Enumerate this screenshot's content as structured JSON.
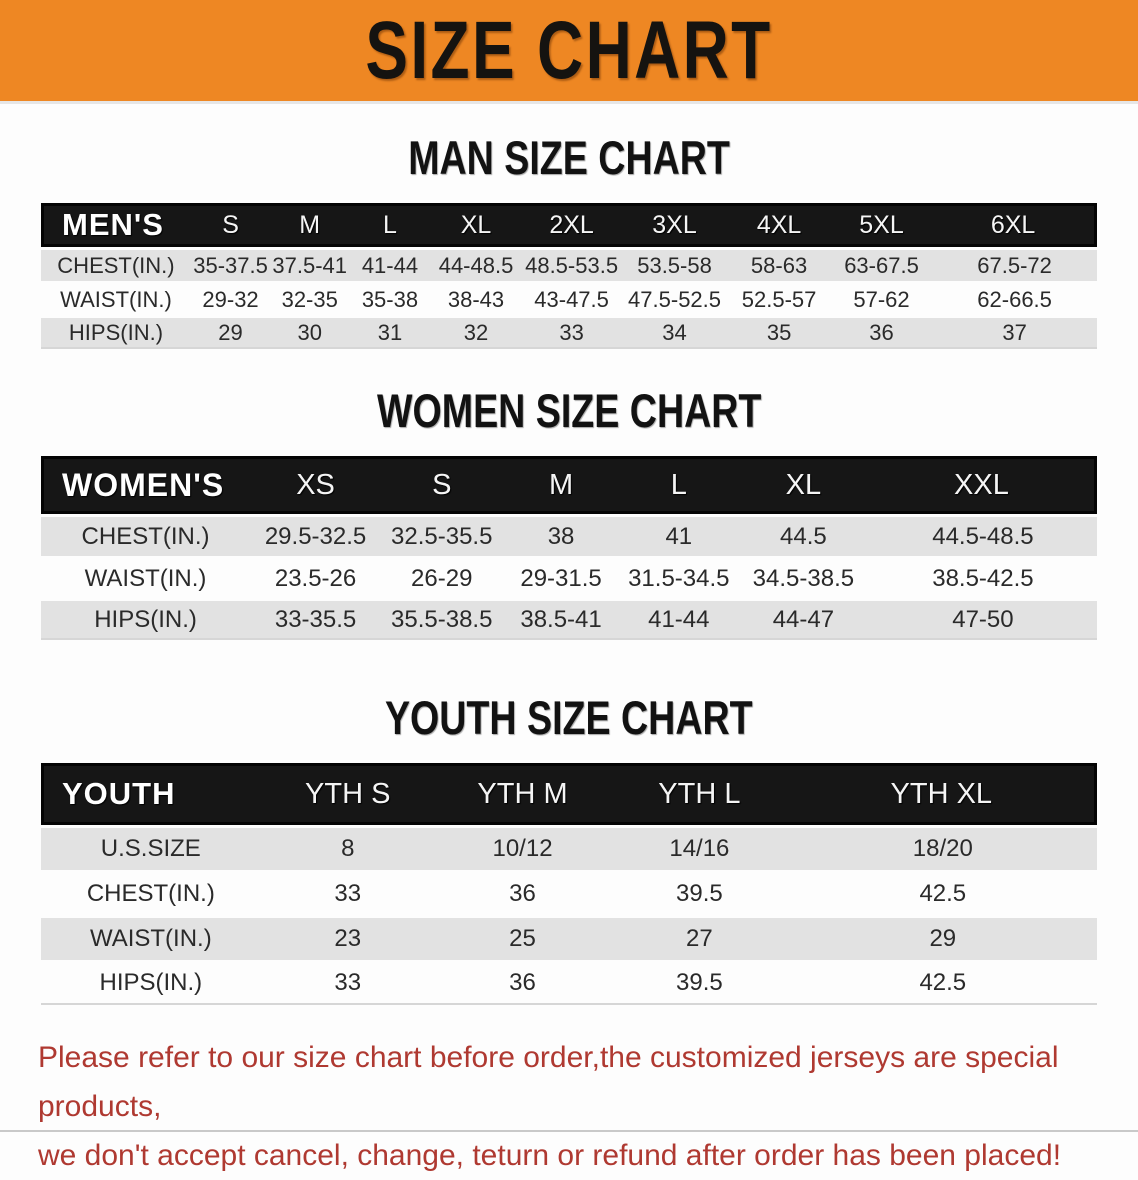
{
  "banner": {
    "title": "SIZE CHART",
    "bg_color": "#ee8723",
    "text_color": "#151310"
  },
  "chart_data": [
    {
      "type": "table",
      "title": "MAN SIZE CHART",
      "header_label": "MEN'S",
      "columns": [
        "S",
        "M",
        "L",
        "XL",
        "2XL",
        "3XL",
        "4XL",
        "5XL",
        "6XL"
      ],
      "rows": [
        {
          "label": "CHEST(IN.)",
          "values": [
            "35-37.5",
            "37.5-41",
            "41-44",
            "44-48.5",
            "48.5-53.5",
            "53.5-58",
            "58-63",
            "63-67.5",
            "67.5-72"
          ]
        },
        {
          "label": "WAIST(IN.)",
          "values": [
            "29-32",
            "32-35",
            "35-38",
            "38-43",
            "43-47.5",
            "47.5-52.5",
            "52.5-57",
            "57-62",
            "62-66.5"
          ]
        },
        {
          "label": "HIPS(IN.)",
          "values": [
            "29",
            "30",
            "31",
            "32",
            "33",
            "34",
            "35",
            "36",
            "37"
          ]
        }
      ]
    },
    {
      "type": "table",
      "title": "WOMEN SIZE CHART",
      "header_label": "WOMEN'S",
      "columns": [
        "XS",
        "S",
        "M",
        "L",
        "XL",
        "XXL"
      ],
      "rows": [
        {
          "label": "CHEST(IN.)",
          "values": [
            "29.5-32.5",
            "32.5-35.5",
            "38",
            "41",
            "44.5",
            "44.5-48.5"
          ]
        },
        {
          "label": "WAIST(IN.)",
          "values": [
            "23.5-26",
            "26-29",
            "29-31.5",
            "31.5-34.5",
            "34.5-38.5",
            "38.5-42.5"
          ]
        },
        {
          "label": "HIPS(IN.)",
          "values": [
            "33-35.5",
            "35.5-38.5",
            "38.5-41",
            "41-44",
            "44-47",
            "47-50"
          ]
        }
      ]
    },
    {
      "type": "table",
      "title": "YOUTH SIZE CHART",
      "header_label": "YOUTH",
      "columns": [
        "YTH S",
        "YTH M",
        "YTH L",
        "YTH XL"
      ],
      "rows": [
        {
          "label": "U.S.SIZE",
          "values": [
            "8",
            "10/12",
            "14/16",
            "18/20"
          ]
        },
        {
          "label": "CHEST(IN.)",
          "values": [
            "33",
            "36",
            "39.5",
            "42.5"
          ]
        },
        {
          "label": "WAIST(IN.)",
          "values": [
            "23",
            "25",
            "27",
            "29"
          ]
        },
        {
          "label": "HIPS(IN.)",
          "values": [
            "33",
            "36",
            "39.5",
            "42.5"
          ]
        }
      ]
    }
  ],
  "footer": {
    "line1": "Please refer to our size chart before order,the customized jerseys are special products,",
    "line2": "we don't accept cancel, change, teturn or refund after order has been placed!",
    "text_color": "#af3931"
  }
}
